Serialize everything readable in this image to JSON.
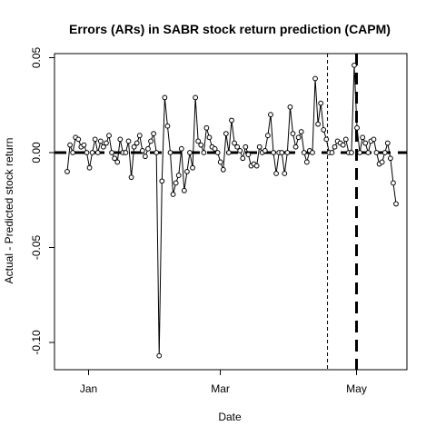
{
  "chart_data": {
    "type": "line",
    "title": "Errors (ARs) in SABR stock return prediction (CAPM)",
    "xlabel": "Date",
    "ylabel": "Actual - Predicted stock return",
    "x_ticks": [
      "Jan",
      "Mar",
      "May"
    ],
    "y_ticks": [
      "-0.10",
      "-0.05",
      "0.00",
      "0.05"
    ],
    "y_tick_values": [
      -0.1,
      -0.05,
      0.0,
      0.05
    ],
    "ylim": [
      -0.114,
      0.052
    ],
    "x_range_days": [
      -12,
      120
    ],
    "x_tick_days": [
      0,
      59,
      120
    ],
    "grid": false,
    "marker": "open-circle",
    "reference_lines": [
      {
        "axis": "y",
        "value": 0.0,
        "style": "thick-dashed"
      },
      {
        "axis": "x",
        "label": "event window start",
        "day": 107,
        "style": "thin-dashed"
      },
      {
        "axis": "x",
        "label": "event day",
        "day": 120,
        "style": "thick-dashed"
      }
    ],
    "series": [
      {
        "values": [
          -0.01,
          0.004,
          0.0,
          0.008,
          0.007,
          0.003,
          0.004,
          0.0,
          -0.008,
          0.0,
          0.007,
          0.0,
          0.006,
          0.003,
          0.005,
          0.009,
          0.0,
          -0.003,
          -0.005,
          0.007,
          0.0,
          0.0,
          0.006,
          -0.013,
          0.003,
          0.005,
          0.009,
          0.001,
          -0.002,
          0.002,
          0.006,
          0.01,
          0.0,
          -0.107,
          -0.015,
          0.029,
          0.014,
          0.0,
          -0.022,
          -0.016,
          -0.012,
          0.002,
          -0.02,
          -0.01,
          0.0,
          -0.008,
          0.029,
          0.006,
          0.004,
          0.0,
          0.013,
          0.008,
          0.003,
          0.002,
          0.0,
          -0.005,
          -0.009,
          0.01,
          0.0,
          0.017,
          0.005,
          0.003,
          0.001,
          -0.003,
          0.003,
          -0.001,
          -0.007,
          -0.006,
          -0.007,
          0.003,
          0.0,
          0.001,
          0.009,
          0.02,
          0.0,
          -0.011,
          0.0,
          0.0,
          -0.011,
          0.0,
          0.024,
          0.01,
          0.003,
          0.008,
          0.011,
          0.0,
          -0.005,
          0.001,
          0.0,
          0.039,
          0.015,
          0.026,
          0.012,
          0.007,
          0.0,
          0.0,
          0.003,
          0.006,
          0.005,
          0.004,
          0.007,
          0.0,
          0.0,
          0.046,
          0.013,
          0.0,
          0.008,
          0.005,
          0.0,
          0.006,
          0.007,
          0.0,
          -0.006,
          -0.005,
          0.0,
          0.005,
          -0.003,
          -0.016,
          -0.027
        ]
      }
    ]
  }
}
